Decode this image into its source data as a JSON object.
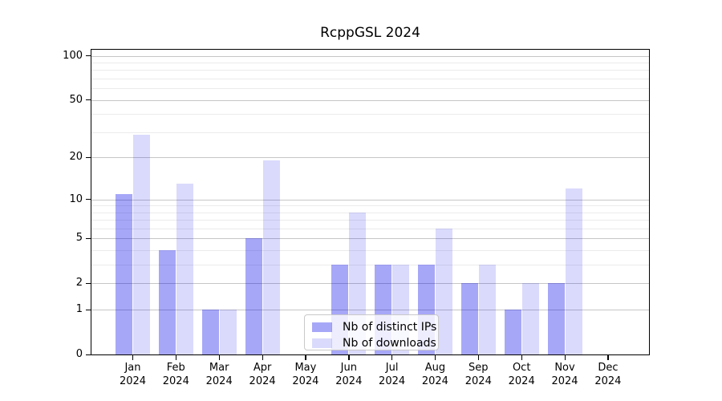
{
  "chart_data": {
    "type": "bar",
    "title": "RcppGSL 2024",
    "categories": [
      "Jan",
      "Feb",
      "Mar",
      "Apr",
      "May",
      "Jun",
      "Jul",
      "Aug",
      "Sep",
      "Oct",
      "Nov",
      "Dec"
    ],
    "year": "2024",
    "series": [
      {
        "name": "Nb of distinct IPs",
        "color": "rgba(0,0,235,0.345)",
        "values": [
          11,
          4,
          1,
          5,
          0,
          3,
          3,
          3,
          2,
          1,
          2,
          0
        ]
      },
      {
        "name": "Nb of downloads",
        "color": "rgba(0,0,235,0.145)",
        "values": [
          29,
          13,
          1,
          19,
          0,
          8,
          3,
          6,
          3,
          2,
          12,
          0
        ]
      }
    ],
    "y_axis": {
      "scale": "log1p",
      "major_ticks": [
        0,
        1,
        2,
        5,
        10,
        20,
        50,
        100
      ],
      "minor_gridlines": [
        3,
        4,
        6,
        7,
        8,
        9,
        30,
        40,
        60,
        70,
        80,
        90
      ],
      "ylim": [
        0,
        113
      ]
    },
    "x_axis": {
      "tick_label_lines": 2
    },
    "legend": {
      "position": "lower-center"
    },
    "grid": true,
    "colors": {
      "major_grid": "#c6c6c6",
      "minor_grid": "#ebebeb",
      "spine": "#000000"
    }
  }
}
